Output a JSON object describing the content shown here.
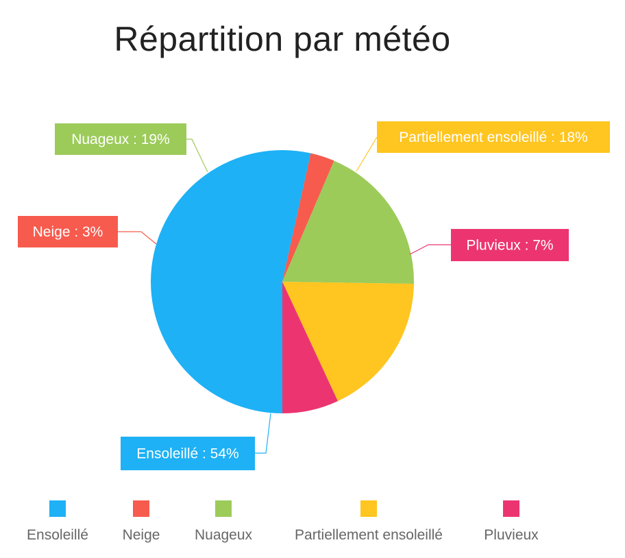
{
  "chart_data": {
    "type": "pie",
    "title": "Répartition par météo",
    "slices": [
      {
        "name": "Ensoleillé",
        "value": 54,
        "color": "#1EB1F5",
        "label": "Ensoleillé : 54%"
      },
      {
        "name": "Neige",
        "value": 3,
        "color": "#F65B4E",
        "label": "Neige : 3%"
      },
      {
        "name": "Nuageux",
        "value": 19,
        "color": "#9CCB5A",
        "label": "Nuageux : 19%"
      },
      {
        "name": "Partiellement ensoleillé",
        "value": 18,
        "color": "#FFC520",
        "label": "Partiellement ensoleillé : 18%"
      },
      {
        "name": "Pluvieux",
        "value": 7,
        "color": "#EC3570",
        "label": "Pluvieux : 7%"
      }
    ],
    "legend": {
      "position": "bottom",
      "items": [
        "Ensoleillé",
        "Neige",
        "Nuageux",
        "Partiellement ensoleillé",
        "Pluvieux"
      ]
    }
  }
}
